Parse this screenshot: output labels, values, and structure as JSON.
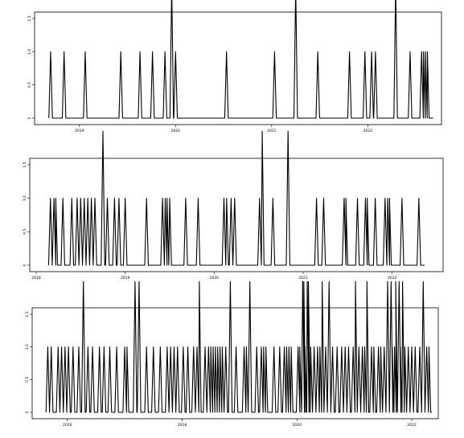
{
  "chart_data": [
    {
      "type": "line",
      "title": "",
      "xlabel": "",
      "ylabel": "",
      "x_range": [
        2018.6,
        2022.7
      ],
      "ylim": [
        0,
        1.5
      ],
      "y_ticks": [
        {
          "value": 0,
          "label": "0"
        },
        {
          "value": 0.5,
          "label": "0.5"
        },
        {
          "value": 1,
          "label": "1.0"
        },
        {
          "value": 1.5,
          "label": "1.5"
        }
      ],
      "x_ticks": [
        {
          "value": 2019,
          "label": "2019"
        },
        {
          "value": 2020,
          "label": "2020"
        },
        {
          "value": 2021,
          "label": "2021"
        },
        {
          "value": 2022,
          "label": "2022"
        }
      ],
      "grid": false,
      "series": [
        {
          "values": [
            [
              2018.7,
              1
            ],
            [
              2018.84,
              1
            ],
            [
              2019.06,
              1
            ],
            [
              2019.43,
              1
            ],
            [
              2019.63,
              1
            ],
            [
              2019.76,
              1
            ],
            [
              2019.89,
              1
            ],
            [
              2019.96,
              2
            ],
            [
              2020.0,
              1
            ],
            [
              2020.53,
              1
            ],
            [
              2021.03,
              1
            ],
            [
              2021.25,
              2
            ],
            [
              2021.48,
              1
            ],
            [
              2021.81,
              1
            ],
            [
              2021.97,
              1
            ],
            [
              2022.04,
              1
            ],
            [
              2022.08,
              1
            ],
            [
              2022.29,
              2
            ],
            [
              2022.44,
              1
            ],
            [
              2022.56,
              1
            ],
            [
              2022.58,
              1
            ],
            [
              2022.6,
              1
            ],
            [
              2022.62,
              1
            ]
          ]
        }
      ]
    },
    {
      "type": "line",
      "title": "",
      "xlabel": "",
      "ylabel": "",
      "x_range": [
        2018.0,
        2022.5
      ],
      "ylim": [
        0,
        1.5
      ],
      "y_ticks": [
        {
          "value": 0,
          "label": "0"
        },
        {
          "value": 0.5,
          "label": "0.5"
        },
        {
          "value": 1,
          "label": "1.0"
        },
        {
          "value": 1.5,
          "label": "1.5"
        }
      ],
      "x_ticks": [
        {
          "value": 2018,
          "label": "2018"
        },
        {
          "value": 2019,
          "label": "2019"
        },
        {
          "value": 2020,
          "label": "2020"
        },
        {
          "value": 2021,
          "label": "2021"
        },
        {
          "value": 2022,
          "label": "2022"
        }
      ],
      "grid": false,
      "series": [
        {
          "values": [
            [
              2018.16,
              1
            ],
            [
              2018.2,
              1
            ],
            [
              2018.22,
              1
            ],
            [
              2018.3,
              1
            ],
            [
              2018.4,
              1
            ],
            [
              2018.46,
              1
            ],
            [
              2018.5,
              1
            ],
            [
              2018.54,
              1
            ],
            [
              2018.58,
              1
            ],
            [
              2018.62,
              1
            ],
            [
              2018.66,
              1
            ],
            [
              2018.75,
              2
            ],
            [
              2018.8,
              1
            ],
            [
              2018.88,
              1
            ],
            [
              2018.93,
              1
            ],
            [
              2019.0,
              1
            ],
            [
              2019.24,
              1
            ],
            [
              2019.42,
              1
            ],
            [
              2019.45,
              1
            ],
            [
              2019.47,
              1
            ],
            [
              2019.5,
              1
            ],
            [
              2019.68,
              1
            ],
            [
              2019.82,
              1
            ],
            [
              2020.11,
              1
            ],
            [
              2020.14,
              1
            ],
            [
              2020.19,
              1
            ],
            [
              2020.23,
              1
            ],
            [
              2020.51,
              1
            ],
            [
              2020.54,
              2
            ],
            [
              2020.66,
              1
            ],
            [
              2020.83,
              2
            ],
            [
              2021.15,
              1
            ],
            [
              2021.23,
              1
            ],
            [
              2021.46,
              1
            ],
            [
              2021.48,
              1
            ],
            [
              2021.61,
              1
            ],
            [
              2021.7,
              1
            ],
            [
              2021.72,
              1
            ],
            [
              2021.81,
              1
            ],
            [
              2021.92,
              1
            ],
            [
              2021.95,
              1
            ],
            [
              2021.97,
              1
            ],
            [
              2022.11,
              1
            ],
            [
              2022.3,
              1
            ]
          ]
        }
      ]
    },
    {
      "type": "line",
      "title": "",
      "xlabel": "",
      "ylabel": "",
      "x_range": [
        2015.5,
        2022.35
      ],
      "ylim": [
        0,
        1.5
      ],
      "y_ticks": [
        {
          "value": 0,
          "label": "0"
        },
        {
          "value": 0.5,
          "label": "0.5"
        },
        {
          "value": 1,
          "label": "1.0"
        },
        {
          "value": 1.5,
          "label": "1.5"
        }
      ],
      "x_ticks": [
        {
          "value": 2016,
          "label": "2016"
        },
        {
          "value": 2018,
          "label": "2018"
        },
        {
          "value": 2020,
          "label": "2020"
        },
        {
          "value": 2022,
          "label": "2022"
        }
      ],
      "grid": false,
      "series": [
        {
          "values": [
            [
              2015.66,
              1
            ],
            [
              2015.72,
              1
            ],
            [
              2015.84,
              1
            ],
            [
              2015.9,
              1
            ],
            [
              2015.96,
              1
            ],
            [
              2016.02,
              1
            ],
            [
              2016.1,
              1
            ],
            [
              2016.2,
              1
            ],
            [
              2016.28,
              2
            ],
            [
              2016.36,
              1
            ],
            [
              2016.44,
              1
            ],
            [
              2016.56,
              1
            ],
            [
              2016.64,
              1
            ],
            [
              2016.74,
              1
            ],
            [
              2016.86,
              1
            ],
            [
              2017.0,
              1
            ],
            [
              2017.04,
              1
            ],
            [
              2017.18,
              2
            ],
            [
              2017.25,
              2
            ],
            [
              2017.38,
              1
            ],
            [
              2017.5,
              1
            ],
            [
              2017.62,
              1
            ],
            [
              2017.74,
              1
            ],
            [
              2017.8,
              1
            ],
            [
              2017.86,
              1
            ],
            [
              2017.92,
              1
            ],
            [
              2018.02,
              1
            ],
            [
              2018.1,
              1
            ],
            [
              2018.2,
              1
            ],
            [
              2018.26,
              1
            ],
            [
              2018.3,
              2
            ],
            [
              2018.4,
              1
            ],
            [
              2018.46,
              1
            ],
            [
              2018.5,
              1
            ],
            [
              2018.54,
              1
            ],
            [
              2018.58,
              1
            ],
            [
              2018.62,
              1
            ],
            [
              2018.66,
              1
            ],
            [
              2018.7,
              1
            ],
            [
              2018.76,
              1
            ],
            [
              2018.84,
              2
            ],
            [
              2018.94,
              1
            ],
            [
              2019.08,
              1
            ],
            [
              2019.12,
              1
            ],
            [
              2019.18,
              2
            ],
            [
              2019.3,
              1
            ],
            [
              2019.38,
              1
            ],
            [
              2019.42,
              1
            ],
            [
              2019.46,
              1
            ],
            [
              2019.6,
              1
            ],
            [
              2019.7,
              1
            ],
            [
              2019.78,
              1
            ],
            [
              2019.82,
              1
            ],
            [
              2019.86,
              1
            ],
            [
              2019.9,
              1
            ],
            [
              2020.02,
              1
            ],
            [
              2020.05,
              1
            ],
            [
              2020.1,
              2
            ],
            [
              2020.12,
              2
            ],
            [
              2020.14,
              1
            ],
            [
              2020.18,
              2
            ],
            [
              2020.2,
              2
            ],
            [
              2020.24,
              1
            ],
            [
              2020.3,
              1
            ],
            [
              2020.36,
              1
            ],
            [
              2020.4,
              1
            ],
            [
              2020.44,
              2
            ],
            [
              2020.5,
              1
            ],
            [
              2020.56,
              2
            ],
            [
              2020.62,
              1
            ],
            [
              2020.7,
              1
            ],
            [
              2020.78,
              1
            ],
            [
              2020.84,
              1
            ],
            [
              2020.9,
              1
            ],
            [
              2020.98,
              1
            ],
            [
              2021.02,
              2
            ],
            [
              2021.08,
              1
            ],
            [
              2021.14,
              1
            ],
            [
              2021.18,
              1
            ],
            [
              2021.22,
              2
            ],
            [
              2021.3,
              1
            ],
            [
              2021.34,
              1
            ],
            [
              2021.42,
              1
            ],
            [
              2021.46,
              1
            ],
            [
              2021.52,
              1
            ],
            [
              2021.58,
              2
            ],
            [
              2021.64,
              2
            ],
            [
              2021.66,
              1
            ],
            [
              2021.7,
              1
            ],
            [
              2021.72,
              2
            ],
            [
              2021.78,
              2
            ],
            [
              2021.8,
              1
            ],
            [
              2021.84,
              2
            ],
            [
              2021.88,
              1
            ],
            [
              2021.94,
              1
            ],
            [
              2022.0,
              1
            ],
            [
              2022.06,
              1
            ],
            [
              2022.14,
              1
            ],
            [
              2022.2,
              2
            ],
            [
              2022.26,
              1
            ],
            [
              2022.3,
              1
            ]
          ]
        }
      ]
    }
  ]
}
